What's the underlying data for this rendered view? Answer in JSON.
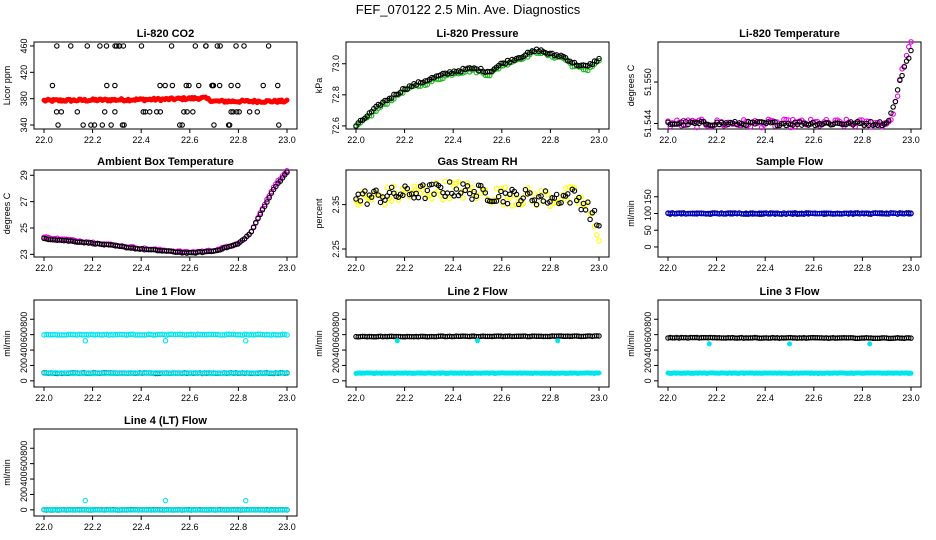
{
  "figure_title": "FEF_070122  2.5 Min. Ave. Diagnostics",
  "chart_data": [
    {
      "id": "co2",
      "type": "scatter",
      "title": "Li-820 CO2",
      "ylabel": "Licor ppm",
      "xlim": [
        22.0,
        23.0
      ],
      "ylim": [
        334,
        466
      ],
      "x_ticks": [
        "22.0",
        "22.2",
        "22.4",
        "22.6",
        "22.8",
        "23.0"
      ],
      "y_ticks": [
        {
          "v": 340,
          "label": "340"
        },
        {
          "v": 380,
          "label": "380"
        },
        {
          "v": 420,
          "label": "420"
        },
        {
          "v": 460,
          "label": "460"
        }
      ],
      "series": [
        {
          "name": "co2-points",
          "color": "#ff0000",
          "shape": "dot",
          "gen": "noise",
          "base": [
            [
              22.0,
              377
            ],
            [
              22.5,
              379
            ],
            [
              22.66,
              381
            ],
            [
              22.7,
              376
            ],
            [
              23.0,
              376
            ]
          ],
          "amp": 2
        },
        {
          "name": "co2-outliers",
          "color": "#000000",
          "shape": "ring",
          "gen": "levels",
          "levels": [
            340,
            360,
            400,
            460
          ],
          "n": 70
        }
      ]
    },
    {
      "id": "pressure",
      "type": "scatter",
      "title": "Li-820 Pressure",
      "ylabel": "kPa",
      "xlim": [
        22.0,
        23.0
      ],
      "ylim": [
        72.58,
        73.14
      ],
      "x_ticks": [
        "22.0",
        "22.2",
        "22.4",
        "22.6",
        "22.8",
        "23.0"
      ],
      "y_ticks": [
        {
          "v": 72.6,
          "label": "72.6"
        },
        {
          "v": 72.8,
          "label": "72.8"
        },
        {
          "v": 73.0,
          "label": "73.0"
        }
      ],
      "series": [
        {
          "name": "pressure-green",
          "color": "#22b522",
          "shape": "ring",
          "gen": "noise",
          "base": [
            [
              22.0,
              72.59
            ],
            [
              22.1,
              72.72
            ],
            [
              22.2,
              72.83
            ],
            [
              22.3,
              72.88
            ],
            [
              22.4,
              72.94
            ],
            [
              22.48,
              72.96
            ],
            [
              22.55,
              72.93
            ],
            [
              22.6,
              72.99
            ],
            [
              22.7,
              73.05
            ],
            [
              22.75,
              73.08
            ],
            [
              22.8,
              73.05
            ],
            [
              22.85,
              73.04
            ],
            [
              22.9,
              72.98
            ],
            [
              22.95,
              72.96
            ],
            [
              23.0,
              73.02
            ]
          ],
          "amp": 0.012
        },
        {
          "name": "pressure-black",
          "color": "#000000",
          "shape": "ring",
          "gen": "noise",
          "base": [
            [
              22.0,
              72.6
            ],
            [
              22.1,
              72.74
            ],
            [
              22.2,
              72.84
            ],
            [
              22.3,
              72.9
            ],
            [
              22.4,
              72.95
            ],
            [
              22.48,
              72.97
            ],
            [
              22.55,
              72.95
            ],
            [
              22.6,
              73.0
            ],
            [
              22.7,
              73.06
            ],
            [
              22.75,
              73.09
            ],
            [
              22.8,
              73.06
            ],
            [
              22.85,
              73.05
            ],
            [
              22.9,
              73.0
            ],
            [
              22.95,
              72.98
            ],
            [
              23.0,
              73.03
            ]
          ],
          "amp": 0.01
        }
      ]
    },
    {
      "id": "licor_temp",
      "type": "scatter",
      "title": "Li-820 Temperature",
      "ylabel": "degrees C",
      "xlim": [
        22.0,
        23.0
      ],
      "ylim": [
        51.5432,
        51.5558
      ],
      "x_ticks": [
        "22.0",
        "22.2",
        "22.4",
        "22.6",
        "22.8",
        "23.0"
      ],
      "y_ticks": [
        {
          "v": 51.544,
          "label": "51.544"
        },
        {
          "v": 51.55,
          "label": "51.550"
        }
      ],
      "series": [
        {
          "name": "ltemp-magenta",
          "color": "#ee00ee",
          "shape": "ring",
          "gen": "noise",
          "base": [
            [
              22.0,
              51.544
            ],
            [
              22.9,
              51.544
            ],
            [
              22.93,
              51.5455
            ],
            [
              22.95,
              51.5495
            ],
            [
              22.97,
              51.5525
            ],
            [
              23.0,
              51.5555
            ]
          ],
          "amp": 0.0006
        },
        {
          "name": "ltemp-black",
          "color": "#000000",
          "shape": "ring",
          "gen": "noise",
          "base": [
            [
              22.0,
              51.544
            ],
            [
              22.9,
              51.544
            ],
            [
              22.93,
              51.5465
            ],
            [
              22.95,
              51.5495
            ],
            [
              22.97,
              51.552
            ],
            [
              23.0,
              51.5545
            ]
          ],
          "amp": 0.0003
        }
      ]
    },
    {
      "id": "box_temp",
      "type": "scatter",
      "title": "Ambient Box Temperature",
      "ylabel": "degrees C",
      "xlim": [
        22.0,
        23.0
      ],
      "ylim": [
        22.8,
        29.4
      ],
      "x_ticks": [
        "22.0",
        "22.2",
        "22.4",
        "22.6",
        "22.8",
        "23.0"
      ],
      "y_ticks": [
        {
          "v": 23,
          "label": "23"
        },
        {
          "v": 25,
          "label": "25"
        },
        {
          "v": 27,
          "label": "27"
        },
        {
          "v": 29,
          "label": "29"
        }
      ],
      "series": [
        {
          "name": "boxtemp-magenta",
          "color": "#ee00ee",
          "shape": "ring",
          "gen": "noise",
          "base": [
            [
              22.0,
              24.3
            ],
            [
              22.2,
              23.9
            ],
            [
              22.4,
              23.45
            ],
            [
              22.6,
              23.15
            ],
            [
              22.7,
              23.3
            ],
            [
              22.8,
              23.8
            ],
            [
              22.85,
              24.6
            ],
            [
              22.9,
              26.5
            ],
            [
              22.95,
              28.3
            ],
            [
              23.0,
              29.3
            ]
          ],
          "amp": 0.05
        },
        {
          "name": "boxtemp-black",
          "color": "#000000",
          "shape": "ring",
          "gen": "noise",
          "base": [
            [
              22.0,
              24.2
            ],
            [
              22.2,
              23.85
            ],
            [
              22.4,
              23.4
            ],
            [
              22.6,
              23.1
            ],
            [
              22.7,
              23.25
            ],
            [
              22.8,
              23.8
            ],
            [
              22.85,
              24.6
            ],
            [
              22.9,
              26.4
            ],
            [
              22.95,
              28.1
            ],
            [
              23.0,
              29.2
            ]
          ],
          "amp": 0.04
        }
      ]
    },
    {
      "id": "rh",
      "type": "scatter",
      "title": "Gas Stream RH",
      "ylabel": "percent",
      "xlim": [
        22.0,
        23.0
      ],
      "ylim": [
        2.232,
        2.428
      ],
      "x_ticks": [
        "22.0",
        "22.2",
        "22.4",
        "22.6",
        "22.8",
        "23.0"
      ],
      "y_ticks": [
        {
          "v": 2.25,
          "label": "2.25"
        },
        {
          "v": 2.35,
          "label": "2.35"
        }
      ],
      "series": [
        {
          "name": "rh-yellow",
          "color": "#ffff00",
          "shape": "ring",
          "gen": "noise",
          "base": [
            [
              22.0,
              2.36
            ],
            [
              22.2,
              2.375
            ],
            [
              22.4,
              2.385
            ],
            [
              22.6,
              2.37
            ],
            [
              22.8,
              2.365
            ],
            [
              22.9,
              2.37
            ],
            [
              22.95,
              2.345
            ],
            [
              23.0,
              2.285
            ]
          ],
          "amp": 0.022
        },
        {
          "name": "rh-black",
          "color": "#000000",
          "shape": "ring",
          "gen": "noise",
          "base": [
            [
              22.0,
              2.365
            ],
            [
              22.2,
              2.375
            ],
            [
              22.4,
              2.385
            ],
            [
              22.6,
              2.37
            ],
            [
              22.8,
              2.365
            ],
            [
              22.9,
              2.37
            ],
            [
              22.95,
              2.345
            ],
            [
              23.0,
              2.305
            ]
          ],
          "amp": 0.018
        }
      ]
    },
    {
      "id": "sample_flow",
      "type": "scatter",
      "title": "Sample Flow",
      "ylabel": "ml/min",
      "xlim": [
        22.0,
        23.0
      ],
      "ylim": [
        -30,
        230
      ],
      "x_ticks": [
        "22.0",
        "22.2",
        "22.4",
        "22.6",
        "22.8",
        "23.0"
      ],
      "y_ticks": [
        {
          "v": 0,
          "label": "0"
        },
        {
          "v": 50,
          "label": "50"
        },
        {
          "v": 100,
          "label": "100"
        },
        {
          "v": 150,
          "label": "150"
        }
      ],
      "series": [
        {
          "name": "sflow-black",
          "color": "#000000",
          "shape": "ring",
          "gen": "noise",
          "base": [
            [
              22.0,
              100
            ],
            [
              23.0,
              100
            ]
          ],
          "amp": 2
        },
        {
          "name": "sflow-blue",
          "color": "#0000cc",
          "shape": "ring",
          "gen": "noise",
          "base": [
            [
              22.0,
              100
            ],
            [
              23.0,
              100
            ]
          ],
          "amp": 1.5
        }
      ]
    },
    {
      "id": "line1",
      "type": "scatter",
      "title": "Line 1 Flow",
      "ylabel": "ml/min",
      "xlim": [
        22.0,
        23.0
      ],
      "ylim": [
        -80,
        1050
      ],
      "x_ticks": [
        "22.0",
        "22.2",
        "22.4",
        "22.6",
        "22.8",
        "23.0"
      ],
      "y_ticks": [
        {
          "v": 0,
          "label": "0"
        },
        {
          "v": 200,
          "label": "200"
        },
        {
          "v": 400,
          "label": "400"
        },
        {
          "v": 600,
          "label": "600"
        },
        {
          "v": 800,
          "label": "800"
        }
      ],
      "series": [
        {
          "name": "l1-black",
          "color": "#000000",
          "shape": "ring",
          "gen": "noise",
          "base": [
            [
              22.0,
              100
            ],
            [
              23.0,
              100
            ]
          ],
          "amp": 4
        },
        {
          "name": "l1-cyan",
          "color": "#00e5ee",
          "shape": "ring",
          "gen": "noise",
          "base": [
            [
              22.0,
              600
            ],
            [
              23.0,
              600
            ]
          ],
          "amp": 5,
          "dips": [
            [
              22.17,
              520
            ],
            [
              22.5,
              520
            ],
            [
              22.83,
              520
            ]
          ]
        },
        {
          "name": "l1-cyan-low",
          "color": "#00e5ee",
          "shape": "ring",
          "gen": "noise",
          "base": [
            [
              22.0,
              100
            ],
            [
              23.0,
              100
            ]
          ],
          "amp": 3
        }
      ]
    },
    {
      "id": "line2",
      "type": "scatter",
      "title": "Line 2 Flow",
      "ylabel": "ml/min",
      "xlim": [
        22.0,
        23.0
      ],
      "ylim": [
        -80,
        1050
      ],
      "x_ticks": [
        "22.0",
        "22.2",
        "22.4",
        "22.6",
        "22.8",
        "23.0"
      ],
      "y_ticks": [
        {
          "v": 0,
          "label": "0"
        },
        {
          "v": 200,
          "label": "200"
        },
        {
          "v": 400,
          "label": "400"
        },
        {
          "v": 600,
          "label": "600"
        },
        {
          "v": 800,
          "label": "800"
        }
      ],
      "series": [
        {
          "name": "l2-black",
          "color": "#000000",
          "shape": "ring",
          "gen": "noise",
          "base": [
            [
              22.0,
              575
            ],
            [
              23.0,
              580
            ]
          ],
          "amp": 4
        },
        {
          "name": "l2-cyan",
          "color": "#00e5ee",
          "shape": "dot",
          "gen": "noise",
          "base": [
            [
              22.0,
              100
            ],
            [
              23.0,
              100
            ]
          ],
          "amp": 4,
          "dips": [
            [
              22.17,
              520
            ],
            [
              22.5,
              520
            ],
            [
              22.83,
              520
            ]
          ]
        }
      ]
    },
    {
      "id": "line3",
      "type": "scatter",
      "title": "Line 3 Flow",
      "ylabel": "ml/min",
      "xlim": [
        22.0,
        23.0
      ],
      "ylim": [
        -80,
        1050
      ],
      "x_ticks": [
        "22.0",
        "22.2",
        "22.4",
        "22.6",
        "22.8",
        "23.0"
      ],
      "y_ticks": [
        {
          "v": 0,
          "label": "0"
        },
        {
          "v": 200,
          "label": "200"
        },
        {
          "v": 400,
          "label": "400"
        },
        {
          "v": 600,
          "label": "600"
        },
        {
          "v": 800,
          "label": "800"
        }
      ],
      "series": [
        {
          "name": "l3-black",
          "color": "#000000",
          "shape": "ring",
          "gen": "noise",
          "base": [
            [
              22.0,
              560
            ],
            [
              23.0,
              555
            ]
          ],
          "amp": 4
        },
        {
          "name": "l3-cyan",
          "color": "#00e5ee",
          "shape": "dot",
          "gen": "noise",
          "base": [
            [
              22.0,
              100
            ],
            [
              23.0,
              100
            ]
          ],
          "amp": 4,
          "dips": [
            [
              22.17,
              480
            ],
            [
              22.5,
              480
            ],
            [
              22.83,
              480
            ]
          ]
        }
      ]
    },
    {
      "id": "line4",
      "type": "scatter",
      "title": "Line 4 (LT) Flow",
      "ylabel": "ml/min",
      "xlim": [
        22.0,
        23.0
      ],
      "ylim": [
        -80,
        1050
      ],
      "x_ticks": [
        "22.0",
        "22.2",
        "22.4",
        "22.6",
        "22.8",
        "23.0"
      ],
      "y_ticks": [
        {
          "v": 0,
          "label": "0"
        },
        {
          "v": 200,
          "label": "200"
        },
        {
          "v": 400,
          "label": "400"
        },
        {
          "v": 600,
          "label": "600"
        },
        {
          "v": 800,
          "label": "800"
        }
      ],
      "series": [
        {
          "name": "l4-black",
          "color": "#000000",
          "shape": "ring",
          "gen": "noise",
          "base": [
            [
              22.0,
              0
            ],
            [
              23.0,
              0
            ]
          ],
          "amp": 2
        },
        {
          "name": "l4-cyan",
          "color": "#00e5ee",
          "shape": "ring",
          "gen": "noise",
          "base": [
            [
              22.0,
              0
            ],
            [
              23.0,
              0
            ]
          ],
          "amp": 2,
          "dips": [
            [
              22.17,
              120
            ],
            [
              22.5,
              120
            ],
            [
              22.83,
              120
            ]
          ]
        }
      ]
    }
  ]
}
